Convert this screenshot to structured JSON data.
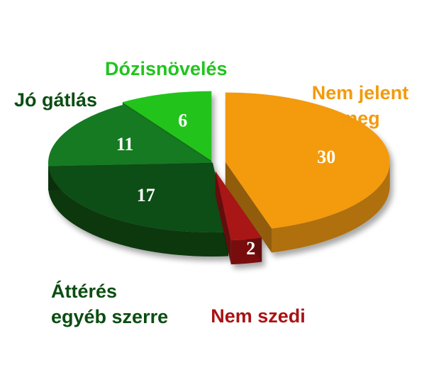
{
  "chart_data": {
    "type": "pie",
    "style": "3d-exploded",
    "slices": [
      {
        "label": "Nem jelent meg",
        "label_lines": [
          "Nem jelent",
          "meg"
        ],
        "value": 30,
        "color": "#f39a0c"
      },
      {
        "label": "Nem szedi",
        "label_lines": [
          "Nem szedi"
        ],
        "value": 2,
        "color": "#a81414"
      },
      {
        "label": "Áttérés egyéb szerre",
        "label_lines": [
          "Áttérés",
          "egyéb szerre"
        ],
        "value": 17,
        "color": "#0b4d12"
      },
      {
        "label": "Jó gátlás",
        "label_lines": [
          "Jó gátlás"
        ],
        "value": 11,
        "color": "#127a20"
      },
      {
        "label": "Dózisnövelés",
        "label_lines": [
          "Dózisnövelés"
        ],
        "value": 6,
        "color": "#22c41e"
      }
    ],
    "label_colors": {
      "Nem jelent meg": "#f39a0c",
      "Nem szedi": "#a81414",
      "Áttérés egyéb szerre": "#0b4d12",
      "Jó gátlás": "#0b4d12",
      "Dózisnövelés": "#22c41e"
    }
  }
}
